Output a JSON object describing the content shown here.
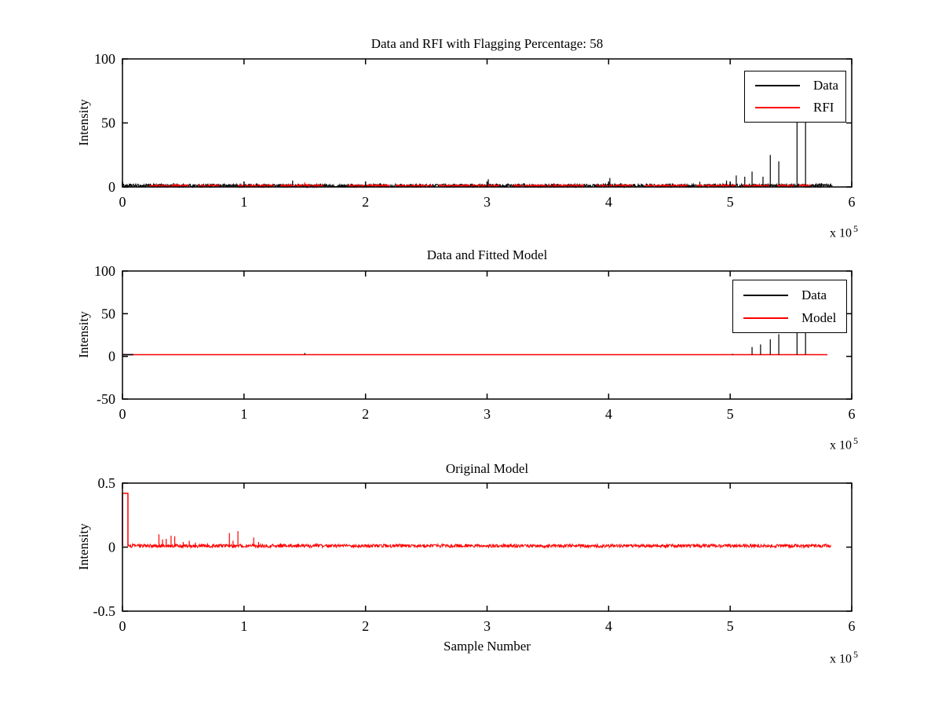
{
  "figure": {
    "background": "#ffffff",
    "axis_color": "#000000",
    "data_color": "#000000",
    "rfi_color": "#ff0000"
  },
  "chart_data": [
    {
      "type": "line",
      "title": "Data and RFI with Flagging Percentage: 58",
      "ylabel": "Intensity",
      "xlabel": "",
      "xlim_e5": [
        0,
        6
      ],
      "ylim": [
        0,
        100
      ],
      "xticks": [
        "0",
        "1",
        "2",
        "3",
        "4",
        "5",
        "6"
      ],
      "yticks": [
        "0",
        "50",
        "100"
      ],
      "x_scale_label": {
        "prefix": "x 10",
        "exponent": "5"
      },
      "legend_position": "upper-right",
      "legend": [
        {
          "label": "Data",
          "color": "#000000"
        },
        {
          "label": "RFI",
          "color": "#ff0000"
        }
      ],
      "series": [
        {
          "name": "Data",
          "color": "#000000",
          "kind": "noise",
          "base": 1.0,
          "amp": 1.3,
          "clamp_min": 0.05,
          "range_e5": [
            0,
            5.84
          ],
          "spikes_e5": [
            [
              0.42,
              3
            ],
            [
              1.4,
              5
            ],
            [
              2.12,
              3
            ],
            [
              3.01,
              6
            ],
            [
              3.3,
              3
            ],
            [
              4.01,
              7
            ],
            [
              4.1,
              3
            ],
            [
              4.75,
              4
            ],
            [
              4.97,
              5
            ],
            [
              5.05,
              9
            ],
            [
              5.12,
              8
            ],
            [
              5.18,
              12
            ],
            [
              5.27,
              8
            ],
            [
              5.33,
              25
            ],
            [
              5.4,
              20
            ],
            [
              5.55,
              75
            ],
            [
              5.62,
              75
            ],
            [
              5.75,
              3
            ]
          ]
        },
        {
          "name": "RFI",
          "color": "#ff0000",
          "kind": "noise",
          "base": 0.9,
          "amp": 1.0,
          "clamp_min": 0.05,
          "patches_e5": [
            [
              0.22,
              0.55
            ],
            [
              0.62,
              0.8
            ],
            [
              0.95,
              1.25
            ],
            [
              1.3,
              1.65
            ],
            [
              1.85,
              2.2
            ],
            [
              2.25,
              2.55
            ],
            [
              2.6,
              3.1
            ],
            [
              3.2,
              3.8
            ],
            [
              3.9,
              4.2
            ],
            [
              4.3,
              4.65
            ],
            [
              4.72,
              5.05
            ],
            [
              5.1,
              5.32
            ],
            [
              5.38,
              5.52
            ],
            [
              5.56,
              5.66
            ]
          ],
          "spikes_e5": [
            [
              1.5,
              3.5
            ],
            [
              3.55,
              3
            ]
          ]
        }
      ]
    },
    {
      "type": "line",
      "title": "Data and Fitted Model",
      "ylabel": "Intensity",
      "xlabel": "",
      "xlim_e5": [
        0,
        6
      ],
      "ylim": [
        -50,
        100
      ],
      "xticks": [
        "0",
        "1",
        "2",
        "3",
        "4",
        "5",
        "6"
      ],
      "yticks": [
        "-50",
        "0",
        "50",
        "100"
      ],
      "x_scale_label": {
        "prefix": "x 10",
        "exponent": "5"
      },
      "legend_position": "upper-right",
      "legend": [
        {
          "label": "Data",
          "color": "#000000"
        },
        {
          "label": "Model",
          "color": "#ff0000"
        }
      ],
      "series": [
        {
          "name": "Model",
          "color": "#ff0000",
          "kind": "flat",
          "level": 2,
          "segments_e5": [
            [
              0,
              5.8
            ]
          ]
        },
        {
          "name": "Data",
          "color": "#000000",
          "kind": "flat",
          "level": 2,
          "segments_e5": [
            [
              0,
              0.09
            ]
          ],
          "spikes_e5": [
            [
              1.5,
              4
            ],
            [
              5.02,
              3
            ],
            [
              5.18,
              11
            ],
            [
              5.25,
              14
            ],
            [
              5.33,
              20
            ],
            [
              5.4,
              26
            ],
            [
              5.55,
              55
            ],
            [
              5.62,
              55
            ]
          ]
        }
      ]
    },
    {
      "type": "line",
      "title": "Original Model",
      "ylabel": "Intensity",
      "xlabel": "Sample Number",
      "xlim_e5": [
        0,
        6
      ],
      "ylim": [
        -0.5,
        0.5
      ],
      "xticks": [
        "0",
        "1",
        "2",
        "3",
        "4",
        "5",
        "6"
      ],
      "yticks": [
        "-0.5",
        "0",
        "0.5"
      ],
      "x_scale_label": {
        "prefix": "x 10",
        "exponent": "5"
      },
      "legend": [],
      "series": [
        {
          "name": "Model",
          "color": "#ff0000",
          "kind": "noise",
          "base": 0.01,
          "amp": 0.013,
          "range_e5": [
            0.045,
            5.83
          ],
          "intro_block": {
            "x0_e5": 0,
            "x1_e5": 0.045,
            "level": 0.42
          },
          "spikes_e5": [
            [
              0.3,
              0.1
            ],
            [
              0.33,
              0.06
            ],
            [
              0.36,
              0.065
            ],
            [
              0.4,
              0.09
            ],
            [
              0.43,
              0.085
            ],
            [
              0.5,
              0.04
            ],
            [
              0.55,
              0.05
            ],
            [
              0.6,
              0.035
            ],
            [
              0.7,
              0.03
            ],
            [
              0.88,
              0.11
            ],
            [
              0.91,
              0.05
            ],
            [
              0.95,
              0.125
            ],
            [
              1.08,
              0.075
            ],
            [
              1.12,
              0.04
            ],
            [
              1.3,
              0.03
            ],
            [
              1.45,
              0.025
            ],
            [
              1.6,
              0.03
            ],
            [
              1.75,
              0.025
            ],
            [
              2.0,
              0.022
            ],
            [
              2.3,
              0.02
            ],
            [
              2.55,
              0.02
            ],
            [
              3.05,
              0.022
            ],
            [
              3.5,
              0.02
            ],
            [
              4.0,
              0.02
            ],
            [
              4.4,
              0.025
            ],
            [
              4.7,
              0.025
            ],
            [
              5.0,
              0.025
            ],
            [
              5.2,
              0.025
            ],
            [
              5.45,
              0.025
            ],
            [
              5.65,
              0.022
            ]
          ]
        }
      ]
    }
  ]
}
